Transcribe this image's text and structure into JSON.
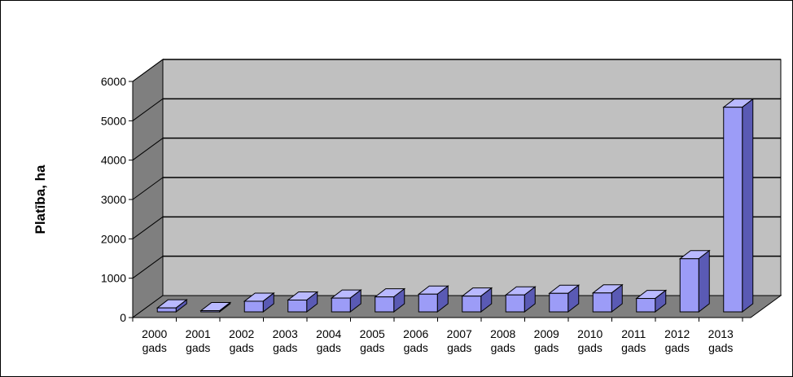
{
  "chart_data": {
    "type": "bar",
    "ylabel": "Platība, ha",
    "xlabel": "",
    "ylim": [
      0,
      6000
    ],
    "yticks": [
      0,
      1000,
      2000,
      3000,
      4000,
      5000,
      6000
    ],
    "grid": true,
    "three_d": true,
    "categories": [
      [
        "2000",
        "gads"
      ],
      [
        "2001",
        "gads"
      ],
      [
        "2002",
        "gads"
      ],
      [
        "2003",
        "gads"
      ],
      [
        "2004",
        "gads"
      ],
      [
        "2005",
        "gads"
      ],
      [
        "2006",
        "gads"
      ],
      [
        "2007",
        "gads"
      ],
      [
        "2008",
        "gads"
      ],
      [
        "2009",
        "gads"
      ],
      [
        "2010",
        "gads"
      ],
      [
        "2011",
        "gads"
      ],
      [
        "2012",
        "gads"
      ],
      [
        "2013",
        "gads"
      ]
    ],
    "values": [
      100,
      30,
      270,
      300,
      350,
      380,
      450,
      400,
      430,
      470,
      480,
      340,
      1350,
      5200
    ],
    "colors": {
      "bar_front": "#9c9cf7",
      "bar_top": "#b9b9ff",
      "bar_side": "#5a5ab4",
      "back_wall": "#c0c0c0",
      "left_wall": "#7f7f7f",
      "floor": "#808080"
    }
  }
}
